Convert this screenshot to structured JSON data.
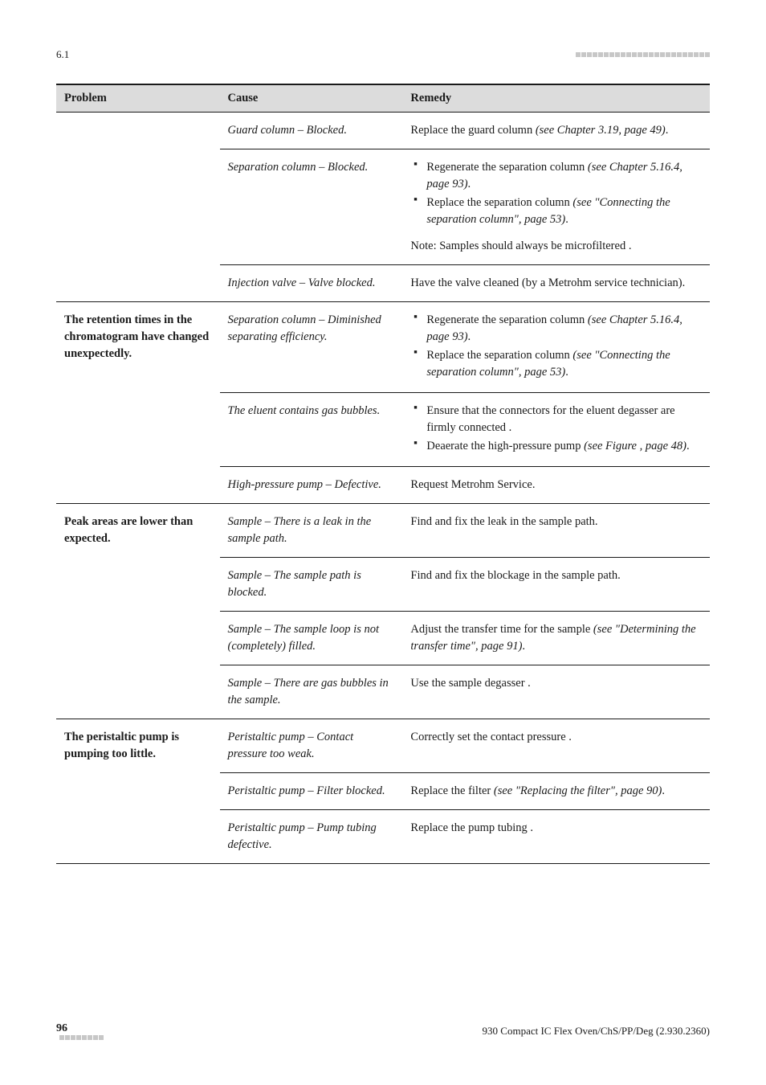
{
  "header": {
    "section": "6.1",
    "decor_count": 24
  },
  "footer": {
    "page_number": "96",
    "decor_count": 8,
    "right_text": "930 Compact IC Flex Oven/ChS/PP/Deg (2.930.2360)"
  },
  "table": {
    "columns": {
      "problem": "Problem",
      "cause": "Cause",
      "remedy": "Remedy"
    },
    "groups": [
      {
        "problem": "",
        "rows": [
          {
            "cause": "Guard column – Blocked.",
            "remedy_plain_pre": "Replace the guard column ",
            "remedy_ital": "(see Chapter 3.19, page 49)",
            "remedy_plain_post": "."
          },
          {
            "cause": "Separation column – Blocked.",
            "remedy_list": [
              {
                "pre": "Regenerate the separation column ",
                "ital": "(see Chapter 5.16.4, page 93)",
                "post": "."
              },
              {
                "pre": "Replace the separation column ",
                "ital": "(see \"Connecting the separation column\", page 53)",
                "post": "."
              }
            ],
            "remedy_note": "Note: Samples should always be microfiltered ."
          },
          {
            "cause": "Injection valve – Valve blocked.",
            "remedy_plain_pre": "Have the valve cleaned (by a Metrohm service technician)."
          }
        ]
      },
      {
        "problem": "The retention times in the chromatogram have changed unexpectedly.",
        "rows": [
          {
            "cause": "Separation column – Diminished separating efficiency.",
            "remedy_list": [
              {
                "pre": "Regenerate the separation column ",
                "ital": "(see Chapter 5.16.4, page 93)",
                "post": "."
              },
              {
                "pre": "Replace the separation column ",
                "ital": "(see \"Connecting the separation column\", page 53)",
                "post": "."
              }
            ]
          },
          {
            "cause": "The eluent contains gas bubbles.",
            "remedy_list": [
              {
                "pre": "Ensure that the connectors for the eluent degasser are firmly connected ."
              },
              {
                "pre": "Deaerate the high-pressure pump ",
                "ital": "(see Figure , page 48)",
                "post": "."
              }
            ]
          },
          {
            "cause": "High-pressure pump – Defective.",
            "remedy_plain_pre": "Request Metrohm Service."
          }
        ]
      },
      {
        "problem": "Peak areas are lower than expected.",
        "rows": [
          {
            "cause": "Sample – There is a leak in the sample path.",
            "remedy_plain_pre": "Find and fix the leak in the sample path."
          },
          {
            "cause": "Sample – The sample path is blocked.",
            "remedy_plain_pre": "Find and fix the blockage in the sample path."
          },
          {
            "cause": "Sample – The sample loop is not (completely) filled.",
            "remedy_plain_pre": "Adjust the transfer time for the sample ",
            "remedy_ital": "(see \"Determining the transfer time\", page 91)",
            "remedy_plain_post": "."
          },
          {
            "cause": "Sample – There are gas bubbles in the sample.",
            "remedy_plain_pre": "Use the sample degasser ."
          }
        ]
      },
      {
        "problem": "The peristaltic pump is pumping too little.",
        "rows": [
          {
            "cause": "Peristaltic pump – Contact pressure too weak.",
            "remedy_plain_pre": "Correctly set the contact pressure ."
          },
          {
            "cause": "Peristaltic pump – Filter blocked.",
            "remedy_plain_pre": "Replace the filter ",
            "remedy_ital": "(see \"Replacing the filter\", page 90)",
            "remedy_plain_post": "."
          },
          {
            "cause": "Peristaltic pump – Pump tubing defective.",
            "remedy_plain_pre": "Replace the pump tubing ."
          }
        ]
      }
    ]
  }
}
